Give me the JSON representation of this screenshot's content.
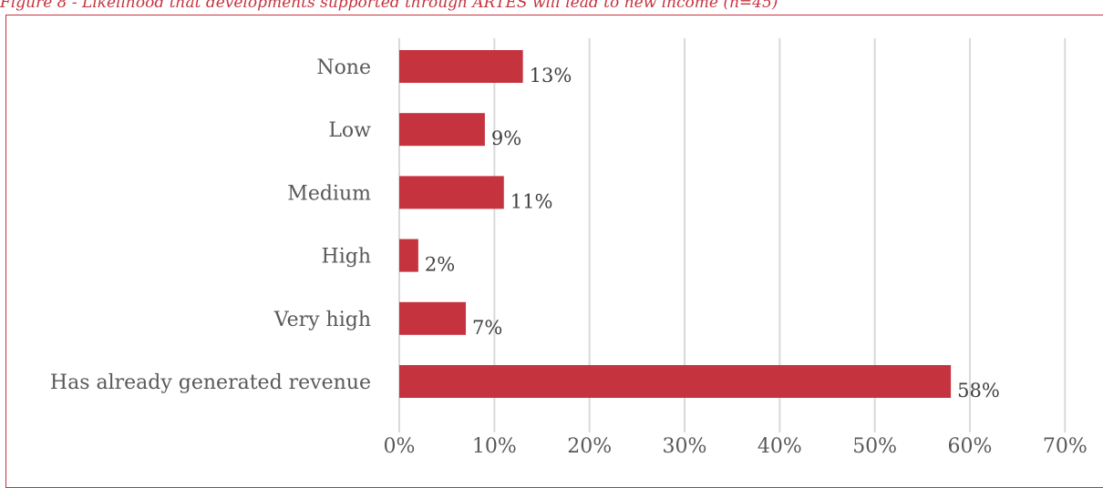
{
  "caption": "Figure 8 - Likelihood that developments supported through ARTES will lead to new income (n=45)",
  "colors": {
    "bar": "#c5333f",
    "frame": "#c5333f",
    "caption": "#c5333f",
    "grid": "#d9d9d9",
    "text": "#595959",
    "data_label": "#404040"
  },
  "chart_data": {
    "type": "bar",
    "orientation": "horizontal",
    "categories": [
      "None",
      "Low",
      "Medium",
      "High",
      "Very high",
      "Has already generated revenue"
    ],
    "values": [
      13,
      9,
      11,
      2,
      7,
      58
    ],
    "data_labels": [
      "13%",
      "9%",
      "11%",
      "2%",
      "7%",
      "58%"
    ],
    "xlim": [
      0,
      70
    ],
    "x_ticks": [
      0,
      10,
      20,
      30,
      40,
      50,
      60,
      70
    ],
    "x_tick_labels": [
      "0%",
      "10%",
      "20%",
      "30%",
      "40%",
      "50%",
      "60%",
      "70%"
    ],
    "grid": true,
    "legend": "none"
  }
}
